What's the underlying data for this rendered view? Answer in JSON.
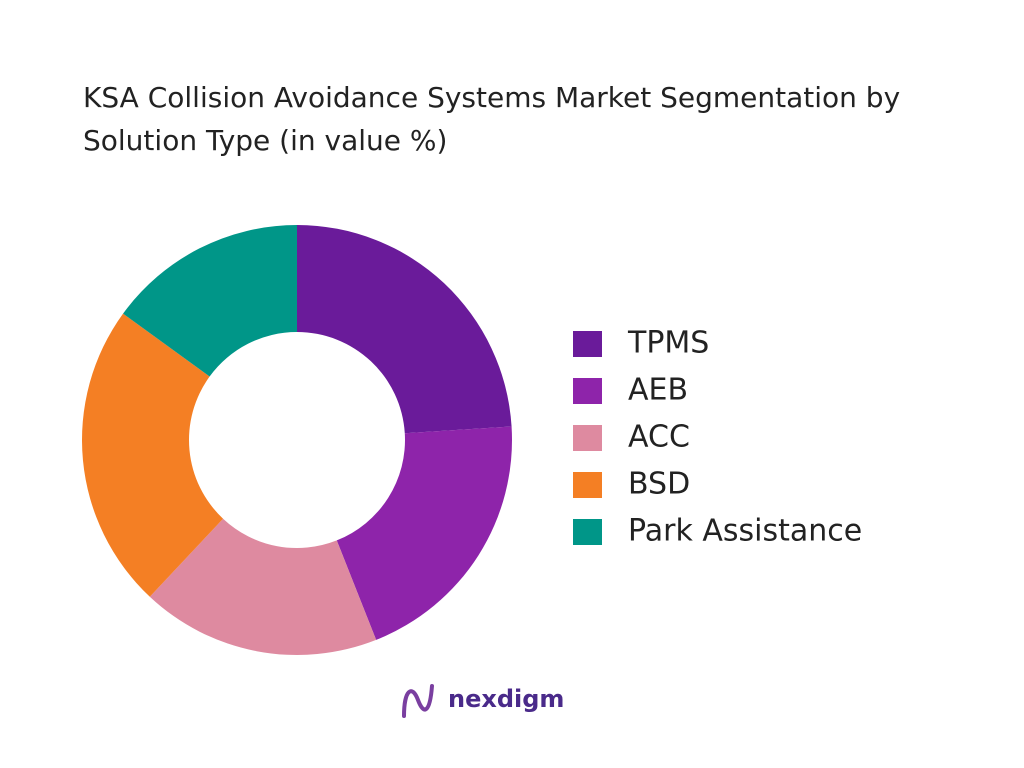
{
  "chart_data": {
    "type": "donut",
    "title": "KSA Collision Avoidance Systems Market Segmentation by Solution Type (in value %)",
    "categories": [
      "TPMS",
      "AEB",
      "ACC",
      "BSD",
      "Park Assistance"
    ],
    "values": [
      24,
      20,
      18,
      23,
      15
    ],
    "colors": [
      "#6a1b9a",
      "#8e24aa",
      "#de8aa0",
      "#f47f24",
      "#009688"
    ],
    "legend": "right",
    "brand": "nexdigm"
  }
}
